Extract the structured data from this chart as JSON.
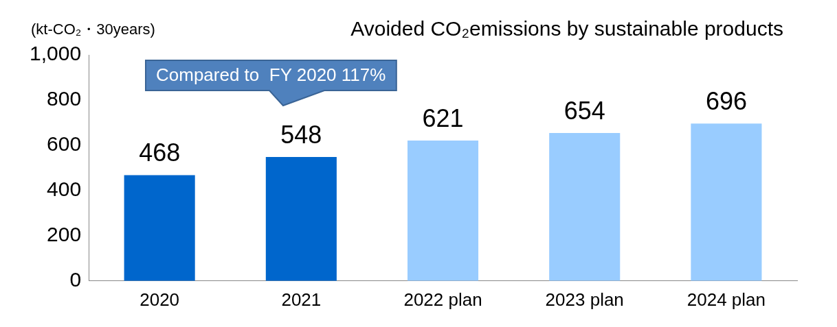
{
  "chart_data": {
    "type": "bar",
    "title": "Avoided CO₂emissions by sustainable products",
    "ylabel": "(kt-CO₂・30years)",
    "categories": [
      "2020",
      "2021",
      "2022 plan",
      "2023 plan",
      "2024 plan"
    ],
    "values": [
      468,
      548,
      621,
      654,
      696
    ],
    "colors": [
      "#0066cc",
      "#0066cc",
      "#99ccff",
      "#99ccff",
      "#99ccff"
    ],
    "ylim": [
      0,
      1000
    ],
    "yticks": [
      0,
      200,
      400,
      600,
      800,
      {
        "value": 1000,
        "label": "1,000"
      }
    ],
    "grid": false,
    "legend": false,
    "data_labels": true,
    "annotations": [
      "Compared to  FY 2020 117%"
    ]
  }
}
